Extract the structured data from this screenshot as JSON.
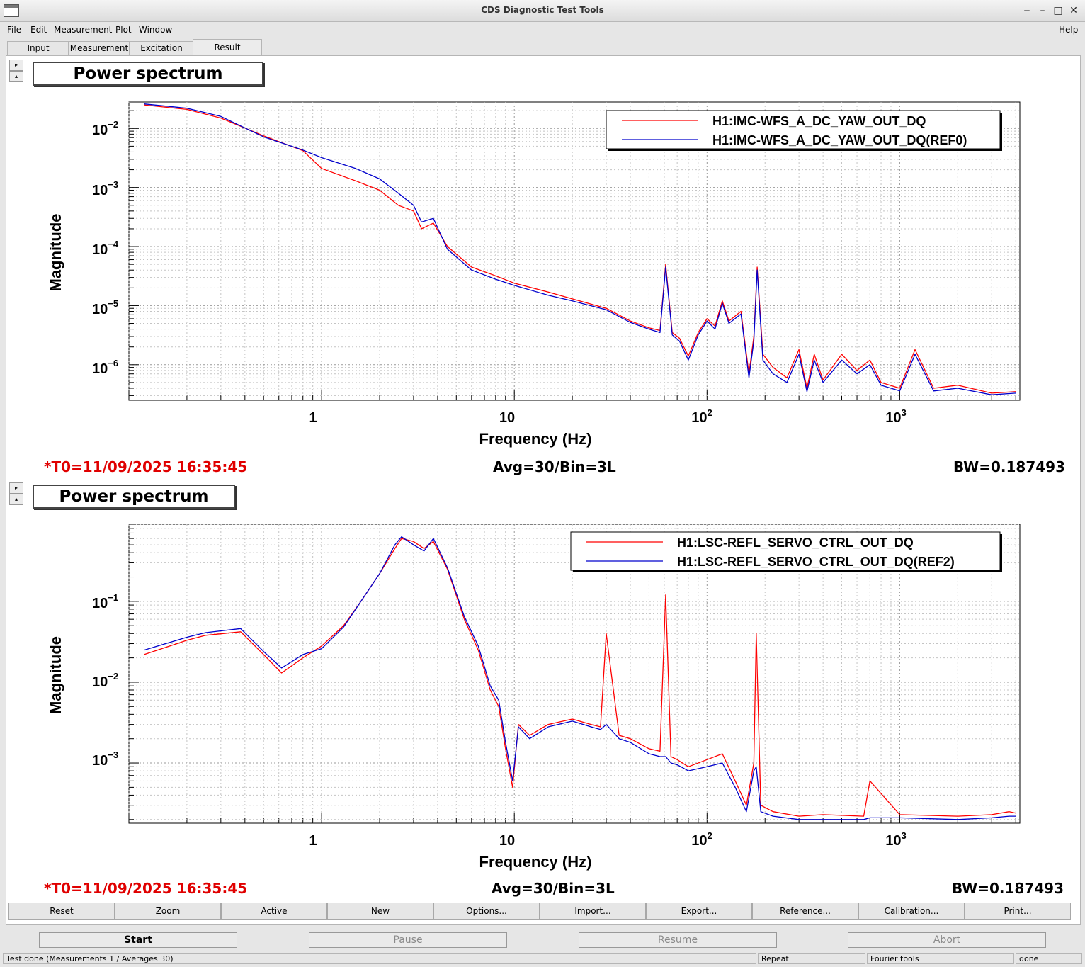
{
  "window": {
    "title": "CDS Diagnostic Test Tools",
    "controls": [
      "‒",
      "–",
      "□",
      "✕"
    ]
  },
  "menu": {
    "items": [
      "File",
      "Edit",
      "Measurement",
      "Plot",
      "Window"
    ],
    "help": "Help"
  },
  "tabs": [
    "Input",
    "Measurement",
    "Excitation",
    "Result"
  ],
  "active_tab": "Result",
  "side_buttons": {
    "up": "▸",
    "down": "▴"
  },
  "colors": {
    "series_red": "#ff0000",
    "series_blue": "#0000cc",
    "t0_text": "#e00000"
  },
  "plots": [
    {
      "title": "Power spectrum",
      "t0": "*T0=11/09/2025 16:35:45",
      "avg": "Avg=30/Bin=3L",
      "bw": "BW=0.187493",
      "chart_data": {
        "type": "line",
        "title": "Power spectrum",
        "xlabel": "Frequency (Hz)",
        "ylabel": "Magnitude",
        "xscale": "log",
        "yscale": "log",
        "xlim": [
          0.1,
          4200
        ],
        "ylim": [
          2.5e-07,
          0.028
        ],
        "grid": true,
        "legend": "top-right",
        "xticks": [
          {
            "base": "1",
            "exp": ""
          },
          {
            "base": "10",
            "exp": ""
          },
          {
            "base": "10",
            "exp": "2"
          },
          {
            "base": "10",
            "exp": "3"
          }
        ],
        "yticks": [
          {
            "base": "10",
            "exp": "−2"
          },
          {
            "base": "10",
            "exp": "−3"
          },
          {
            "base": "10",
            "exp": "−4"
          },
          {
            "base": "10",
            "exp": "−5"
          },
          {
            "base": "10",
            "exp": "−6"
          }
        ],
        "series": [
          {
            "name": "H1:IMC-WFS_A_DC_YAW_OUT_DQ",
            "color": "#ff0000",
            "x": [
              0.12,
              0.2,
              0.3,
              0.5,
              0.8,
              1.0,
              1.5,
              2.0,
              2.5,
              3.0,
              3.3,
              3.8,
              4.5,
              6.0,
              8.0,
              10,
              15,
              20,
              30,
              40,
              50,
              57,
              61,
              66,
              72,
              80,
              90,
              100,
              110,
              120,
              130,
              150,
              165,
              175,
              182,
              195,
              220,
              260,
              300,
              330,
              360,
              400,
              500,
              600,
              700,
              800,
              1000,
              1200,
              1500,
              2000,
              3000,
              4000
            ],
            "y": [
              0.025,
              0.021,
              0.015,
              0.0075,
              0.0042,
              0.0021,
              0.0013,
              0.0009,
              0.0005,
              0.0004,
              0.0002,
              0.00025,
              0.0001,
              4.5e-05,
              3.2e-05,
              2.4e-05,
              1.7e-05,
              1.3e-05,
              9e-06,
              5.5e-06,
              4.2e-06,
              3.8e-06,
              5e-05,
              3.5e-06,
              2.8e-06,
              1.4e-06,
              3.5e-06,
              6e-06,
              4.5e-06,
              1.2e-05,
              5.5e-06,
              8e-06,
              7e-07,
              3e-06,
              4.5e-05,
              1.5e-06,
              9e-07,
              6e-07,
              1.8e-06,
              4e-07,
              1.5e-06,
              5.5e-07,
              1.5e-06,
              8e-07,
              1.2e-06,
              5e-07,
              4e-07,
              1.8e-06,
              4e-07,
              4.5e-07,
              3.3e-07,
              3.5e-07
            ]
          },
          {
            "name": "H1:IMC-WFS_A_DC_YAW_OUT_DQ(REF0)",
            "color": "#0000cc",
            "x": [
              0.12,
              0.2,
              0.3,
              0.5,
              0.8,
              1.0,
              1.5,
              2.0,
              2.5,
              3.0,
              3.3,
              3.8,
              4.5,
              6.0,
              8.0,
              10,
              15,
              20,
              30,
              40,
              50,
              57,
              61,
              66,
              72,
              80,
              90,
              100,
              110,
              120,
              130,
              150,
              165,
              175,
              182,
              195,
              220,
              260,
              300,
              330,
              360,
              400,
              500,
              600,
              700,
              800,
              1000,
              1200,
              1500,
              2000,
              3000,
              4000
            ],
            "y": [
              0.026,
              0.022,
              0.016,
              0.0072,
              0.0043,
              0.0032,
              0.0021,
              0.0014,
              0.0008,
              0.0005,
              0.00026,
              0.0003,
              9e-05,
              4e-05,
              2.8e-05,
              2.2e-05,
              1.5e-05,
              1.2e-05,
              8.5e-06,
              5.2e-06,
              4e-06,
              3.5e-06,
              4.5e-05,
              3.2e-06,
              2.5e-06,
              1.2e-06,
              3.2e-06,
              5.5e-06,
              4e-06,
              1.1e-05,
              5e-06,
              7.2e-06,
              6e-07,
              2.5e-06,
              4e-05,
              1.2e-06,
              7e-07,
              5e-07,
              1.5e-06,
              3.5e-07,
              1.2e-06,
              5e-07,
              1.2e-06,
              7e-07,
              1e-06,
              4.5e-07,
              3.6e-07,
              1.5e-06,
              3.6e-07,
              4e-07,
              3.1e-07,
              3.3e-07
            ]
          }
        ]
      }
    },
    {
      "title": "Power spectrum",
      "t0": "*T0=11/09/2025 16:35:45",
      "avg": "Avg=30/Bin=3L",
      "bw": "BW=0.187493",
      "chart_data": {
        "type": "line",
        "title": "Power spectrum",
        "xlabel": "Frequency (Hz)",
        "ylabel": "Magnitude",
        "xscale": "log",
        "yscale": "log",
        "xlim": [
          0.1,
          4200
        ],
        "ylim": [
          0.00018,
          0.9
        ],
        "grid": true,
        "legend": "top-right",
        "xticks": [
          {
            "base": "1",
            "exp": ""
          },
          {
            "base": "10",
            "exp": ""
          },
          {
            "base": "10",
            "exp": "2"
          },
          {
            "base": "10",
            "exp": "3"
          }
        ],
        "yticks": [
          {
            "base": "10",
            "exp": "−1"
          },
          {
            "base": "10",
            "exp": "−2"
          },
          {
            "base": "10",
            "exp": "−3"
          }
        ],
        "series": [
          {
            "name": "H1:LSC-REFL_SERVO_CTRL_OUT_DQ",
            "color": "#ff0000",
            "x": [
              0.12,
              0.2,
              0.25,
              0.38,
              0.5,
              0.62,
              0.8,
              1.0,
              1.3,
              1.6,
              2.0,
              2.4,
              2.6,
              3.0,
              3.4,
              3.8,
              4.5,
              5.5,
              6.5,
              7.5,
              8.3,
              9.0,
              9.8,
              10.5,
              12,
              15,
              20,
              25,
              28,
              30,
              35,
              40,
              50,
              57,
              61,
              65,
              70,
              80,
              100,
              120,
              140,
              160,
              175,
              180,
              190,
              220,
              300,
              400,
              650,
              700,
              1000,
              2000,
              3000,
              3700,
              4000
            ],
            "y": [
              0.022,
              0.033,
              0.038,
              0.042,
              0.022,
              0.013,
              0.02,
              0.028,
              0.05,
              0.1,
              0.22,
              0.45,
              0.6,
              0.55,
              0.45,
              0.55,
              0.25,
              0.06,
              0.025,
              0.008,
              0.005,
              0.0015,
              0.0005,
              0.003,
              0.0022,
              0.003,
              0.0035,
              0.003,
              0.0028,
              0.04,
              0.0022,
              0.002,
              0.0015,
              0.0014,
              0.12,
              0.0012,
              0.0011,
              0.0009,
              0.0011,
              0.0013,
              0.0006,
              0.0003,
              0.001,
              0.04,
              0.0003,
              0.00025,
              0.00022,
              0.00023,
              0.00022,
              0.0006,
              0.00023,
              0.00022,
              0.00023,
              0.00025,
              0.00024
            ]
          },
          {
            "name": "H1:LSC-REFL_SERVO_CTRL_OUT_DQ(REF2)",
            "color": "#0000cc",
            "x": [
              0.12,
              0.2,
              0.25,
              0.38,
              0.5,
              0.62,
              0.8,
              1.0,
              1.3,
              1.6,
              2.0,
              2.4,
              2.6,
              3.0,
              3.4,
              3.8,
              4.5,
              5.5,
              6.5,
              7.5,
              8.3,
              9.0,
              9.8,
              10.5,
              12,
              15,
              20,
              25,
              28,
              30,
              35,
              40,
              50,
              57,
              61,
              65,
              70,
              80,
              100,
              120,
              140,
              160,
              175,
              180,
              190,
              220,
              300,
              400,
              650,
              700,
              1000,
              2000,
              3000,
              3700,
              4000
            ],
            "y": [
              0.025,
              0.036,
              0.041,
              0.046,
              0.024,
              0.015,
              0.022,
              0.026,
              0.048,
              0.1,
              0.22,
              0.5,
              0.63,
              0.5,
              0.42,
              0.6,
              0.26,
              0.065,
              0.028,
              0.009,
              0.006,
              0.0018,
              0.0006,
              0.0028,
              0.002,
              0.0028,
              0.0033,
              0.0028,
              0.0026,
              0.003,
              0.002,
              0.0018,
              0.0013,
              0.0012,
              0.0012,
              0.001,
              0.00095,
              0.0008,
              0.0009,
              0.001,
              0.0005,
              0.00025,
              0.0008,
              0.0009,
              0.00025,
              0.00022,
              0.0002,
              0.0002,
              0.0002,
              0.00021,
              0.00021,
              0.0002,
              0.00021,
              0.00022,
              0.00022
            ]
          }
        ]
      }
    }
  ],
  "buttons": [
    "Reset",
    "Zoom",
    "Active",
    "New",
    "Options...",
    "Import...",
    "Export...",
    "Reference...",
    "Calibration...",
    "Print..."
  ],
  "run_buttons": {
    "start": "Start",
    "pause": "Pause",
    "resume": "Resume",
    "abort": "Abort"
  },
  "status": {
    "message": "Test done (Measurements 1 / Averages 30)",
    "mode": "Repeat",
    "tool": "Fourier tools",
    "state": "done"
  }
}
